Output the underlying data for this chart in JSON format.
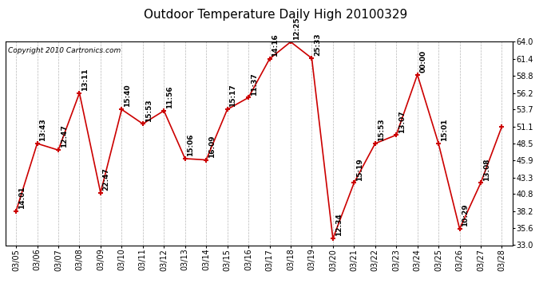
{
  "title": "Outdoor Temperature Daily High 20100329",
  "copyright": "Copyright 2010 Cartronics.com",
  "dates": [
    "03/05",
    "03/06",
    "03/07",
    "03/08",
    "03/09",
    "03/10",
    "03/11",
    "03/12",
    "03/13",
    "03/14",
    "03/15",
    "03/16",
    "03/17",
    "03/18",
    "03/19",
    "03/20",
    "03/21",
    "03/22",
    "03/23",
    "03/24",
    "03/25",
    "03/26",
    "03/27",
    "03/28"
  ],
  "temps": [
    38.2,
    48.5,
    47.5,
    56.2,
    41.0,
    53.7,
    51.5,
    53.5,
    46.2,
    46.0,
    53.7,
    55.5,
    61.4,
    64.0,
    61.5,
    34.0,
    42.5,
    48.5,
    49.8,
    59.0,
    48.5,
    35.5,
    42.5,
    51.1
  ],
  "labels": [
    "14:01",
    "13:43",
    "12:47",
    "13:11",
    "22:47",
    "15:40",
    "15:53",
    "11:56",
    "15:06",
    "16:09",
    "15:17",
    "11:37",
    "14:16",
    "12:25",
    "25:33",
    "12:34",
    "15:19",
    "15:53",
    "13:07",
    "00:00",
    "15:01",
    "10:29",
    "13:08",
    ""
  ],
  "ylim_min": 33.0,
  "ylim_max": 64.0,
  "yticks": [
    33.0,
    35.6,
    38.2,
    40.8,
    43.3,
    45.9,
    48.5,
    51.1,
    53.7,
    56.2,
    58.8,
    61.4,
    64.0
  ],
  "line_color": "#cc0000",
  "marker_color": "#cc0000",
  "bg_color": "#ffffff",
  "grid_color": "#999999",
  "title_fontsize": 11,
  "label_fontsize": 6.5,
  "tick_fontsize": 7,
  "copyright_fontsize": 6.5
}
